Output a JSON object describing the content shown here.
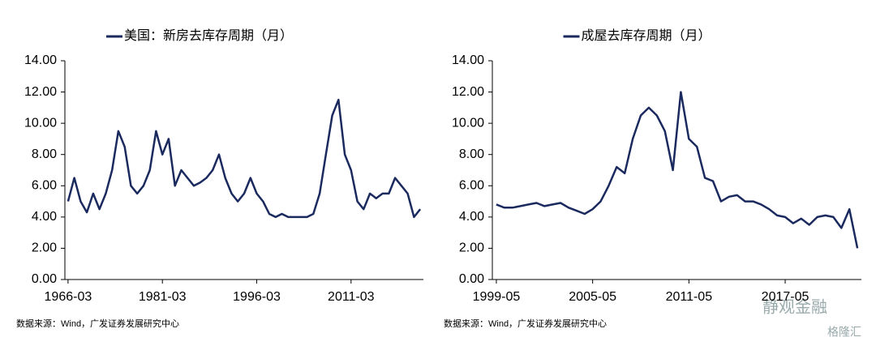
{
  "chart_data": [
    {
      "type": "line",
      "title": "美国：新房去库存周期（月）",
      "x": [
        "1966-03",
        "1967-03",
        "1968-03",
        "1969-03",
        "1970-03",
        "1971-03",
        "1972-03",
        "1973-03",
        "1974-03",
        "1975-03",
        "1976-03",
        "1977-03",
        "1978-03",
        "1979-03",
        "1980-03",
        "1981-03",
        "1982-03",
        "1983-03",
        "1984-03",
        "1985-03",
        "1986-03",
        "1987-03",
        "1988-03",
        "1989-03",
        "1990-03",
        "1991-03",
        "1992-03",
        "1993-03",
        "1994-03",
        "1995-03",
        "1996-03",
        "1997-03",
        "1998-03",
        "1999-03",
        "2000-03",
        "2001-03",
        "2002-03",
        "2003-03",
        "2004-03",
        "2005-03",
        "2006-03",
        "2007-03",
        "2008-03",
        "2009-03",
        "2010-03",
        "2011-03",
        "2012-03",
        "2013-03",
        "2014-03",
        "2015-03",
        "2016-03",
        "2017-03",
        "2018-03",
        "2019-03",
        "2020-03",
        "2021-03",
        "2022-03"
      ],
      "series": [
        {
          "name": "美国：新房去库存周期（月）",
          "color": "#1b2a5e",
          "values": [
            5.0,
            6.5,
            5.0,
            4.3,
            5.5,
            4.5,
            5.5,
            7.0,
            9.5,
            8.5,
            6.0,
            5.5,
            6.0,
            7.0,
            9.5,
            8.0,
            9.0,
            6.0,
            7.0,
            6.5,
            6.0,
            6.2,
            6.5,
            7.0,
            8.0,
            6.5,
            5.5,
            5.0,
            5.5,
            6.5,
            5.5,
            5.0,
            4.2,
            4.0,
            4.2,
            4.0,
            4.0,
            4.0,
            4.0,
            4.2,
            5.5,
            8.0,
            10.5,
            11.5,
            8.0,
            7.0,
            5.0,
            4.5,
            5.5,
            5.2,
            5.5,
            5.5,
            6.5,
            6.0,
            5.5,
            4.0,
            4.5
          ]
        }
      ],
      "xticks": [
        "1966-03",
        "1981-03",
        "1996-03",
        "2011-03"
      ],
      "ylim": [
        0,
        14
      ],
      "yticks": [
        {
          "value": 0,
          "label": "0.00"
        },
        {
          "value": 2,
          "label": "2.00"
        },
        {
          "value": 4,
          "label": "4.00"
        },
        {
          "value": 6,
          "label": "6.00"
        },
        {
          "value": 8,
          "label": "8.00"
        },
        {
          "value": 10,
          "label": "10.00"
        },
        {
          "value": 12,
          "label": "12.00"
        },
        {
          "value": 14,
          "label": "14.00"
        }
      ],
      "source": "数据来源：Wind，广发证券发展研究中心"
    },
    {
      "type": "line",
      "title": "成屋去库存周期（月）",
      "x": [
        "1999-05",
        "1999-11",
        "2000-05",
        "2000-11",
        "2001-05",
        "2001-11",
        "2002-05",
        "2002-11",
        "2003-05",
        "2003-11",
        "2004-05",
        "2004-11",
        "2005-05",
        "2005-11",
        "2006-05",
        "2006-11",
        "2007-05",
        "2007-11",
        "2008-05",
        "2008-11",
        "2009-05",
        "2009-11",
        "2010-05",
        "2010-11",
        "2011-05",
        "2011-11",
        "2012-05",
        "2012-11",
        "2013-05",
        "2013-11",
        "2014-05",
        "2014-11",
        "2015-05",
        "2015-11",
        "2016-05",
        "2016-11",
        "2017-05",
        "2017-11",
        "2018-05",
        "2018-11",
        "2019-05",
        "2019-11",
        "2020-05",
        "2020-11",
        "2021-05",
        "2021-11"
      ],
      "series": [
        {
          "name": "成屋去库存周期（月）",
          "color": "#1b2a5e",
          "values": [
            4.8,
            4.6,
            4.6,
            4.7,
            4.8,
            4.9,
            4.7,
            4.8,
            4.9,
            4.6,
            4.4,
            4.2,
            4.5,
            5.0,
            6.0,
            7.2,
            6.8,
            9.0,
            10.5,
            11.0,
            10.5,
            9.5,
            7.0,
            12.0,
            9.0,
            8.5,
            6.5,
            6.3,
            5.0,
            5.3,
            5.4,
            5.0,
            5.0,
            4.8,
            4.5,
            4.1,
            4.0,
            3.6,
            3.9,
            3.5,
            4.0,
            4.1,
            4.0,
            3.3,
            4.5,
            2.0
          ]
        }
      ],
      "xticks": [
        "1999-05",
        "2005-05",
        "2011-05",
        "2017-05"
      ],
      "ylim": [
        0,
        14
      ],
      "yticks": [
        {
          "value": 0,
          "label": "0.00"
        },
        {
          "value": 2,
          "label": "2.00"
        },
        {
          "value": 4,
          "label": "4.00"
        },
        {
          "value": 6,
          "label": "6.00"
        },
        {
          "value": 8,
          "label": "8.00"
        },
        {
          "value": 10,
          "label": "10.00"
        },
        {
          "value": 12,
          "label": "12.00"
        },
        {
          "value": 14,
          "label": "14.00"
        }
      ],
      "source": "数据来源：Wind，广发证券发展研究中心"
    }
  ],
  "watermark": [
    "静观金融",
    "格隆汇"
  ]
}
